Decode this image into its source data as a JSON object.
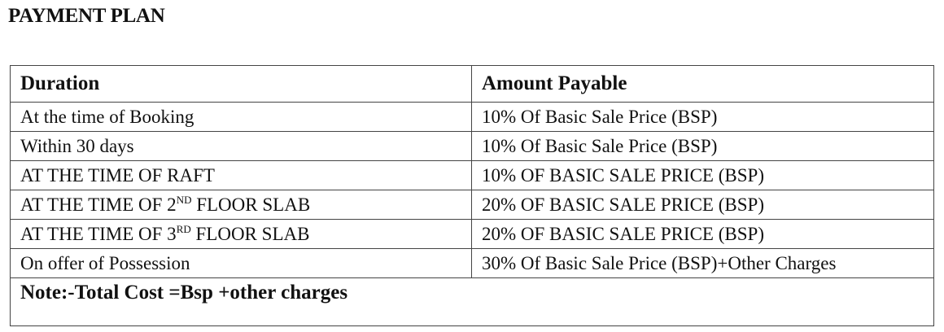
{
  "header": {
    "title": "PAYMENT PLAN"
  },
  "table": {
    "columns": [
      "Duration",
      "Amount Payable"
    ],
    "rows": [
      [
        [
          "At the time of Booking"
        ],
        "10% Of Basic Sale Price (BSP)"
      ],
      [
        [
          "Within 30 days"
        ],
        "10% Of Basic Sale Price (BSP)"
      ],
      [
        [
          "AT THE TIME OF RAFT"
        ],
        "10% OF BASIC SALE PRICE (BSP)"
      ],
      [
        [
          "AT THE TIME OF 2",
          "ND",
          " FLOOR SLAB"
        ],
        "20% OF BASIC SALE PRICE (BSP)"
      ],
      [
        [
          "AT THE TIME OF 3",
          "RD",
          " FLOOR SLAB"
        ],
        "20% OF BASIC SALE PRICE (BSP)"
      ],
      [
        [
          "On offer of Possession"
        ],
        "30% Of Basic Sale Price (BSP)+Other Charges"
      ]
    ],
    "note": "Note:-Total Cost =Bsp +other charges"
  }
}
